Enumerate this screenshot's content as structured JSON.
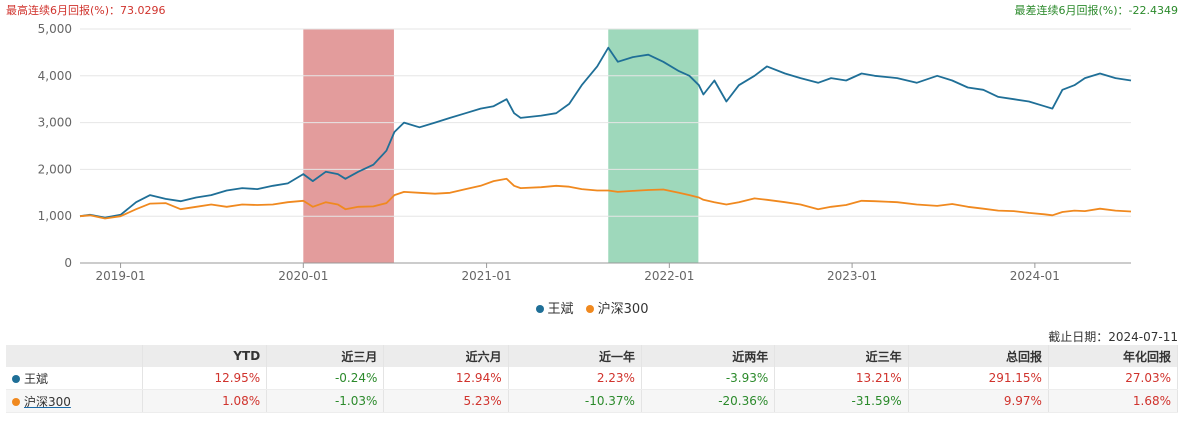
{
  "header": {
    "max_note": "最高连续6月回报(%)：73.0296",
    "min_note": "最差连续6月回报(%)：-22.4349"
  },
  "chart_data": {
    "type": "line",
    "ylim": [
      0,
      5000
    ],
    "yticks": [
      "0",
      "1,000",
      "2,000",
      "3,000",
      "4,000",
      "5,000"
    ],
    "ytick_values": [
      0,
      1000,
      2000,
      3000,
      4000,
      5000
    ],
    "xlim": [
      "2018-10-12",
      "2024-07-11"
    ],
    "xticks": [
      "2019-01",
      "2020-01",
      "2021-01",
      "2022-01",
      "2023-01",
      "2024-01"
    ],
    "xtick_dates": [
      "2019-01-01",
      "2020-01-01",
      "2021-01-01",
      "2022-01-01",
      "2023-01-01",
      "2024-01-01"
    ],
    "grid": "horizontal",
    "legend_position": "bottom-center",
    "highlight_bands": [
      {
        "start": "2020-01-01",
        "end": "2020-06-30",
        "color": "#d97b7b"
      },
      {
        "start": "2021-09-01",
        "end": "2022-02-28",
        "color": "#7dcba4"
      }
    ],
    "series": [
      {
        "name": "王斌",
        "color": "#1f6f97",
        "points": [
          [
            "2018-10-12",
            1000
          ],
          [
            "2018-11-01",
            1030
          ],
          [
            "2018-12-01",
            970
          ],
          [
            "2019-01-01",
            1030
          ],
          [
            "2019-02-01",
            1300
          ],
          [
            "2019-03-01",
            1450
          ],
          [
            "2019-04-01",
            1370
          ],
          [
            "2019-05-01",
            1320
          ],
          [
            "2019-06-01",
            1400
          ],
          [
            "2019-07-01",
            1450
          ],
          [
            "2019-08-01",
            1550
          ],
          [
            "2019-09-01",
            1600
          ],
          [
            "2019-10-01",
            1580
          ],
          [
            "2019-11-01",
            1650
          ],
          [
            "2019-12-01",
            1700
          ],
          [
            "2020-01-01",
            1900
          ],
          [
            "2020-01-20",
            1750
          ],
          [
            "2020-02-15",
            1950
          ],
          [
            "2020-03-10",
            1900
          ],
          [
            "2020-03-25",
            1800
          ],
          [
            "2020-04-20",
            1950
          ],
          [
            "2020-05-20",
            2100
          ],
          [
            "2020-06-15",
            2400
          ],
          [
            "2020-07-01",
            2800
          ],
          [
            "2020-07-20",
            3000
          ],
          [
            "2020-08-20",
            2900
          ],
          [
            "2020-09-20",
            3000
          ],
          [
            "2020-10-20",
            3100
          ],
          [
            "2020-11-20",
            3200
          ],
          [
            "2020-12-20",
            3300
          ],
          [
            "2021-01-15",
            3350
          ],
          [
            "2021-02-10",
            3500
          ],
          [
            "2021-02-25",
            3200
          ],
          [
            "2021-03-10",
            3100
          ],
          [
            "2021-04-20",
            3150
          ],
          [
            "2021-05-20",
            3200
          ],
          [
            "2021-06-15",
            3400
          ],
          [
            "2021-07-10",
            3800
          ],
          [
            "2021-08-10",
            4200
          ],
          [
            "2021-09-01",
            4600
          ],
          [
            "2021-09-20",
            4300
          ],
          [
            "2021-10-20",
            4400
          ],
          [
            "2021-11-20",
            4450
          ],
          [
            "2021-12-20",
            4300
          ],
          [
            "2022-01-20",
            4100
          ],
          [
            "2022-02-10",
            4000
          ],
          [
            "2022-03-01",
            3800
          ],
          [
            "2022-03-10",
            3600
          ],
          [
            "2022-04-01",
            3900
          ],
          [
            "2022-04-25",
            3450
          ],
          [
            "2022-05-20",
            3800
          ],
          [
            "2022-06-20",
            4000
          ],
          [
            "2022-07-15",
            4200
          ],
          [
            "2022-08-20",
            4050
          ],
          [
            "2022-09-20",
            3950
          ],
          [
            "2022-10-25",
            3850
          ],
          [
            "2022-11-20",
            3950
          ],
          [
            "2022-12-20",
            3900
          ],
          [
            "2023-01-20",
            4050
          ],
          [
            "2023-02-15",
            4000
          ],
          [
            "2023-04-01",
            3950
          ],
          [
            "2023-05-10",
            3850
          ],
          [
            "2023-06-20",
            4000
          ],
          [
            "2023-07-20",
            3900
          ],
          [
            "2023-08-20",
            3750
          ],
          [
            "2023-09-20",
            3700
          ],
          [
            "2023-10-20",
            3550
          ],
          [
            "2023-11-20",
            3500
          ],
          [
            "2023-12-20",
            3450
          ],
          [
            "2024-01-20",
            3350
          ],
          [
            "2024-02-05",
            3300
          ],
          [
            "2024-02-25",
            3700
          ],
          [
            "2024-03-20",
            3800
          ],
          [
            "2024-04-10",
            3950
          ],
          [
            "2024-05-10",
            4050
          ],
          [
            "2024-06-10",
            3950
          ],
          [
            "2024-07-11",
            3900
          ]
        ]
      },
      {
        "name": "沪深300",
        "color": "#f0891f",
        "points": [
          [
            "2018-10-12",
            1000
          ],
          [
            "2018-11-01",
            1020
          ],
          [
            "2018-12-01",
            950
          ],
          [
            "2019-01-01",
            1000
          ],
          [
            "2019-02-01",
            1150
          ],
          [
            "2019-03-01",
            1270
          ],
          [
            "2019-04-01",
            1280
          ],
          [
            "2019-05-01",
            1150
          ],
          [
            "2019-06-01",
            1200
          ],
          [
            "2019-07-01",
            1250
          ],
          [
            "2019-08-01",
            1200
          ],
          [
            "2019-09-01",
            1250
          ],
          [
            "2019-10-01",
            1240
          ],
          [
            "2019-11-01",
            1250
          ],
          [
            "2019-12-01",
            1300
          ],
          [
            "2020-01-01",
            1330
          ],
          [
            "2020-01-20",
            1200
          ],
          [
            "2020-02-15",
            1300
          ],
          [
            "2020-03-10",
            1250
          ],
          [
            "2020-03-25",
            1150
          ],
          [
            "2020-04-20",
            1200
          ],
          [
            "2020-05-20",
            1210
          ],
          [
            "2020-06-15",
            1280
          ],
          [
            "2020-07-01",
            1450
          ],
          [
            "2020-07-20",
            1520
          ],
          [
            "2020-08-20",
            1500
          ],
          [
            "2020-09-20",
            1480
          ],
          [
            "2020-10-20",
            1500
          ],
          [
            "2020-11-20",
            1580
          ],
          [
            "2020-12-20",
            1650
          ],
          [
            "2021-01-15",
            1750
          ],
          [
            "2021-02-10",
            1800
          ],
          [
            "2021-02-25",
            1650
          ],
          [
            "2021-03-10",
            1600
          ],
          [
            "2021-04-20",
            1620
          ],
          [
            "2021-05-20",
            1650
          ],
          [
            "2021-06-15",
            1630
          ],
          [
            "2021-07-10",
            1580
          ],
          [
            "2021-08-10",
            1550
          ],
          [
            "2021-09-01",
            1550
          ],
          [
            "2021-09-20",
            1520
          ],
          [
            "2021-10-20",
            1540
          ],
          [
            "2021-11-20",
            1560
          ],
          [
            "2021-12-20",
            1570
          ],
          [
            "2022-01-20",
            1500
          ],
          [
            "2022-02-10",
            1450
          ],
          [
            "2022-03-01",
            1400
          ],
          [
            "2022-03-10",
            1350
          ],
          [
            "2022-04-01",
            1300
          ],
          [
            "2022-04-25",
            1250
          ],
          [
            "2022-05-20",
            1300
          ],
          [
            "2022-06-20",
            1380
          ],
          [
            "2022-07-15",
            1350
          ],
          [
            "2022-08-20",
            1300
          ],
          [
            "2022-09-20",
            1250
          ],
          [
            "2022-10-25",
            1150
          ],
          [
            "2022-11-20",
            1200
          ],
          [
            "2022-12-20",
            1240
          ],
          [
            "2023-01-20",
            1330
          ],
          [
            "2023-02-15",
            1320
          ],
          [
            "2023-04-01",
            1300
          ],
          [
            "2023-05-10",
            1250
          ],
          [
            "2023-06-20",
            1220
          ],
          [
            "2023-07-20",
            1260
          ],
          [
            "2023-08-20",
            1200
          ],
          [
            "2023-09-20",
            1160
          ],
          [
            "2023-10-20",
            1120
          ],
          [
            "2023-11-20",
            1110
          ],
          [
            "2023-12-20",
            1070
          ],
          [
            "2024-01-20",
            1040
          ],
          [
            "2024-02-05",
            1020
          ],
          [
            "2024-02-25",
            1090
          ],
          [
            "2024-03-20",
            1120
          ],
          [
            "2024-04-10",
            1110
          ],
          [
            "2024-05-10",
            1160
          ],
          [
            "2024-06-10",
            1120
          ],
          [
            "2024-07-11",
            1100
          ]
        ]
      }
    ]
  },
  "as_of": "截止日期：2024-07-11",
  "table": {
    "columns": [
      "",
      "YTD",
      "近三月",
      "近六月",
      "近一年",
      "近两年",
      "近三年",
      "总回报",
      "年化回报"
    ],
    "rows": [
      {
        "name": "王斌",
        "color": "#1f6f97",
        "values": [
          "12.95%",
          "-0.24%",
          "12.94%",
          "2.23%",
          "-3.93%",
          "13.21%",
          "291.15%",
          "27.03%"
        ]
      },
      {
        "name": "沪深300",
        "color": "#f0891f",
        "values": [
          "1.08%",
          "-1.03%",
          "5.23%",
          "-10.37%",
          "-20.36%",
          "-31.59%",
          "9.97%",
          "1.68%"
        ]
      }
    ]
  }
}
